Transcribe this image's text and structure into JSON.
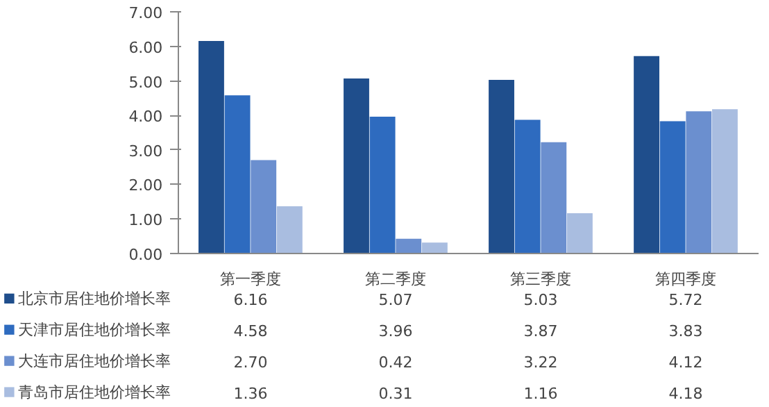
{
  "chart_data": {
    "type": "bar",
    "categories": [
      "第一季度",
      "第二季度",
      "第三季度",
      "第四季度"
    ],
    "series": [
      {
        "name": "北京市居住地价增长率",
        "color": "#1f4e8c",
        "values": [
          6.16,
          5.07,
          5.03,
          5.72
        ],
        "value_labels": [
          "6.16",
          "5.07",
          "5.03",
          "5.72"
        ]
      },
      {
        "name": "天津市居住地价增长率",
        "color": "#2e6bbf",
        "values": [
          4.58,
          3.96,
          3.87,
          3.83
        ],
        "value_labels": [
          "4.58",
          "3.96",
          "3.87",
          "3.83"
        ]
      },
      {
        "name": "大连市居住地价增长率",
        "color": "#6b8fcf",
        "values": [
          2.7,
          0.42,
          3.22,
          4.12
        ],
        "value_labels": [
          "2.70",
          "0.42",
          "3.22",
          "4.12"
        ]
      },
      {
        "name": "青岛市居住地价增长率",
        "color": "#a9bde0",
        "values": [
          1.36,
          0.31,
          1.16,
          4.18
        ],
        "value_labels": [
          "1.36",
          "0.31",
          "1.16",
          "4.18"
        ]
      }
    ],
    "ylim": [
      0,
      7
    ],
    "yticks": [
      {
        "value": 0,
        "label": "0.00"
      },
      {
        "value": 1,
        "label": "1.00"
      },
      {
        "value": 2,
        "label": "2.00"
      },
      {
        "value": 3,
        "label": "3.00"
      },
      {
        "value": 4,
        "label": "4.00"
      },
      {
        "value": 5,
        "label": "5.00"
      },
      {
        "value": 6,
        "label": "6.00"
      },
      {
        "value": 7,
        "label": "7.00"
      }
    ],
    "legend": "bottom",
    "grid": false
  }
}
